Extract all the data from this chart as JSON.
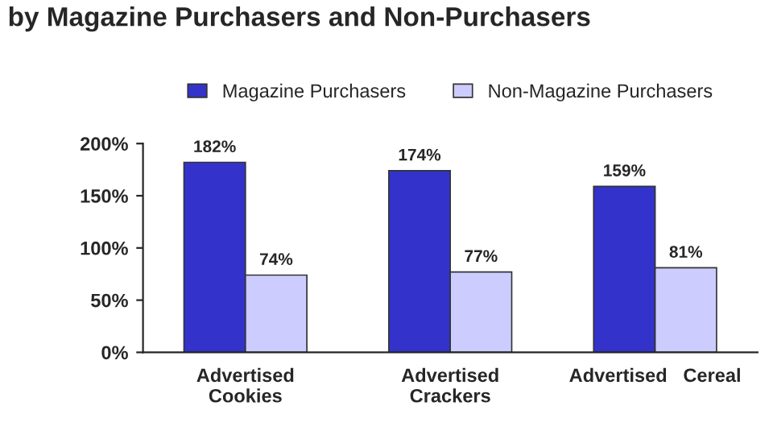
{
  "chart_data": {
    "type": "bar",
    "title": "by Magazine Purchasers and Non-Purchasers",
    "categories": [
      "Advertised\nCookies",
      "Advertised\nCrackers",
      "Advertised   Cereal"
    ],
    "series": [
      {
        "name": "Magazine Purchasers",
        "color": "#3333cc",
        "values": [
          182,
          174,
          159
        ],
        "value_labels": [
          "182%",
          "174%",
          "159%"
        ]
      },
      {
        "name": "Non-Magazine Purchasers",
        "color": "#ccccff",
        "values": [
          74,
          77,
          81
        ],
        "value_labels": [
          "74%",
          "77%",
          "81%"
        ]
      }
    ],
    "ylim": [
      0,
      200
    ],
    "yticks": [
      {
        "value": 0,
        "label": "0%"
      },
      {
        "value": 50,
        "label": "50%"
      },
      {
        "value": 100,
        "label": "100%"
      },
      {
        "value": 150,
        "label": "150%"
      },
      {
        "value": 200,
        "label": "200%"
      }
    ],
    "grid": false,
    "legend": "top"
  }
}
